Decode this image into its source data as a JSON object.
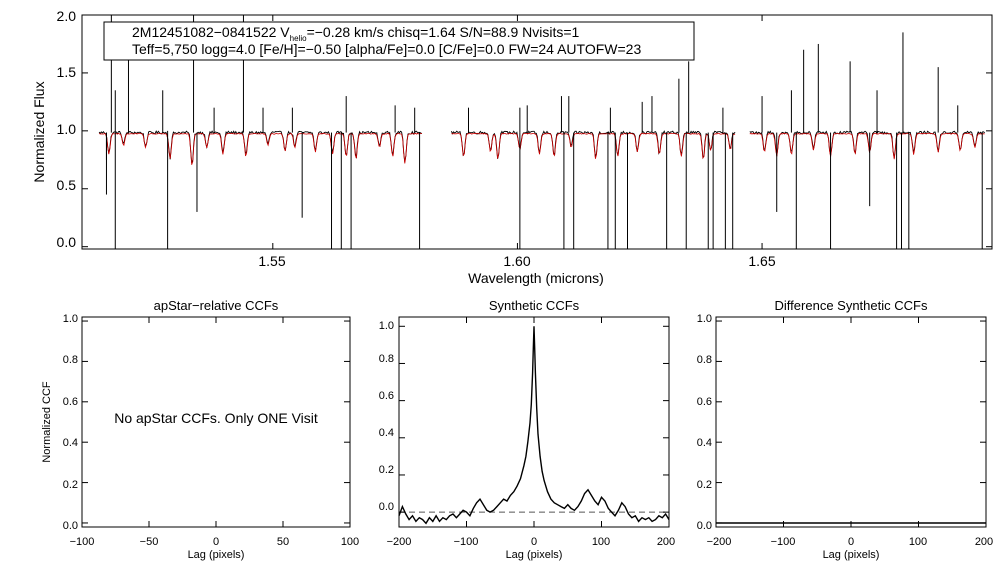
{
  "chart_data": [
    {
      "id": "spectrum",
      "type": "line",
      "info_box": {
        "line1_prefix": "2M12451082−0841522  V",
        "line1_sub": "helio",
        "line1_suffix": "=−0.28 km/s  chisq=1.64  S/N=88.9  Nvisits=1",
        "line2": "Teff=5,750 logg=4.0 [Fe/H]=−0.50 [alpha/Fe]=0.0 [C/Fe]=0.0 FW=24 AUTOFW=23"
      },
      "xlabel": "Wavelength (microns)",
      "ylabel": "Normalized Flux",
      "xlim": [
        1.511,
        1.697
      ],
      "ylim": [
        -0.02,
        2.0
      ],
      "xticks": [
        1.55,
        1.6,
        1.65
      ],
      "xtick_labels": [
        "1.55",
        "1.60",
        "1.65"
      ],
      "yticks": [
        0.0,
        0.5,
        1.0,
        1.5,
        2.0
      ],
      "ytick_labels": [
        "0.0",
        "0.5",
        "1.0",
        "1.5",
        "2.0"
      ],
      "chips": [
        [
          1.5145,
          1.5805
        ],
        [
          1.5865,
          1.6445
        ],
        [
          1.6475,
          1.6955
        ]
      ],
      "series": [
        {
          "key": "observed",
          "color": "#000000",
          "continuum": 0.985,
          "noise": 0.012
        },
        {
          "key": "model",
          "color": "#cc0000",
          "continuum": 0.975,
          "noise": 0.004
        }
      ],
      "absorption_lines": [
        [
          1.5165,
          0.18
        ],
        [
          1.5195,
          0.1
        ],
        [
          1.524,
          0.12
        ],
        [
          1.529,
          0.22
        ],
        [
          1.5335,
          0.28
        ],
        [
          1.5365,
          0.12
        ],
        [
          1.5398,
          0.18
        ],
        [
          1.5445,
          0.2
        ],
        [
          1.549,
          0.1
        ],
        [
          1.5525,
          0.15
        ],
        [
          1.5545,
          0.12
        ],
        [
          1.5587,
          0.16
        ],
        [
          1.5622,
          0.18
        ],
        [
          1.565,
          0.2
        ],
        [
          1.567,
          0.22
        ],
        [
          1.5718,
          0.12
        ],
        [
          1.5745,
          0.2
        ],
        [
          1.577,
          0.26
        ],
        [
          1.589,
          0.2
        ],
        [
          1.5945,
          0.16
        ],
        [
          1.596,
          0.22
        ],
        [
          1.6005,
          0.14
        ],
        [
          1.6045,
          0.18
        ],
        [
          1.6075,
          0.2
        ],
        [
          1.611,
          0.12
        ],
        [
          1.616,
          0.22
        ],
        [
          1.6205,
          0.2
        ],
        [
          1.6245,
          0.16
        ],
        [
          1.629,
          0.18
        ],
        [
          1.6335,
          0.2
        ],
        [
          1.638,
          0.22
        ],
        [
          1.6395,
          0.15
        ],
        [
          1.6435,
          0.14
        ],
        [
          1.6505,
          0.16
        ],
        [
          1.653,
          0.2
        ],
        [
          1.656,
          0.18
        ],
        [
          1.6605,
          0.14
        ],
        [
          1.664,
          0.2
        ],
        [
          1.669,
          0.18
        ],
        [
          1.672,
          0.16
        ],
        [
          1.677,
          0.22
        ],
        [
          1.681,
          0.18
        ],
        [
          1.686,
          0.16
        ],
        [
          1.6905,
          0.15
        ],
        [
          1.6935,
          0.12
        ]
      ],
      "emission_spikes": [
        [
          1.517,
          2.0
        ],
        [
          1.5205,
          1.7
        ],
        [
          1.5275,
          1.35
        ],
        [
          1.5338,
          2.0
        ],
        [
          1.538,
          1.2
        ],
        [
          1.544,
          2.0
        ],
        [
          1.548,
          1.2
        ],
        [
          1.554,
          1.2
        ],
        [
          1.565,
          1.3
        ],
        [
          1.575,
          1.22
        ],
        [
          1.579,
          1.2
        ],
        [
          1.59,
          1.2
        ],
        [
          1.602,
          1.22
        ],
        [
          1.609,
          1.3
        ],
        [
          1.6105,
          1.3
        ],
        [
          1.619,
          1.2
        ],
        [
          1.6255,
          1.25
        ],
        [
          1.6275,
          1.3
        ],
        [
          1.633,
          1.45
        ],
        [
          1.635,
          1.6
        ],
        [
          1.642,
          1.2
        ],
        [
          1.65,
          1.3
        ],
        [
          1.656,
          1.35
        ],
        [
          1.6585,
          1.7
        ],
        [
          1.6615,
          1.75
        ],
        [
          1.668,
          1.6
        ],
        [
          1.6735,
          1.35
        ],
        [
          1.6788,
          1.85
        ],
        [
          1.686,
          1.55
        ],
        [
          1.69,
          1.22
        ]
      ],
      "dropouts": [
        [
          1.516,
          0.45,
          0.75
        ],
        [
          1.5178,
          -0.02,
          1.35
        ],
        [
          1.5285,
          -0.02,
          1.0
        ],
        [
          1.5345,
          0.3,
          0.0
        ],
        [
          1.556,
          0.25,
          0.0
        ],
        [
          1.562,
          -0.02,
          0.0
        ],
        [
          1.564,
          -0.02,
          0.0
        ],
        [
          1.566,
          -0.02,
          0.0
        ],
        [
          1.58,
          -0.02,
          0.0
        ],
        [
          1.6005,
          -0.02,
          1.2
        ],
        [
          1.6095,
          -0.02,
          0.0
        ],
        [
          1.6115,
          -0.02,
          0.0
        ],
        [
          1.6185,
          -0.02,
          0.0
        ],
        [
          1.62,
          -0.02,
          0.0
        ],
        [
          1.6225,
          -0.02,
          0.0
        ],
        [
          1.6305,
          -0.02,
          0.0
        ],
        [
          1.6345,
          -0.02,
          0.0
        ],
        [
          1.639,
          -0.02,
          0.0
        ],
        [
          1.64,
          -0.02,
          0.0
        ],
        [
          1.6425,
          -0.02,
          0.0
        ],
        [
          1.644,
          -0.02,
          0.0
        ],
        [
          1.653,
          0.3,
          0.0
        ],
        [
          1.657,
          -0.02,
          0.0
        ],
        [
          1.664,
          -0.02,
          0.0
        ],
        [
          1.672,
          0.35,
          0.0
        ],
        [
          1.6775,
          -0.02,
          0.0
        ],
        [
          1.6785,
          -0.02,
          0.0
        ],
        [
          1.68,
          -0.02,
          0.0
        ],
        [
          1.695,
          -0.02,
          0.0
        ]
      ]
    },
    {
      "id": "apstar-ccf",
      "type": "line",
      "title": "apStar−relative CCFs",
      "xlabel": "Lag (pixels)",
      "ylabel": "Normalized CCF",
      "xlim": [
        -100,
        100
      ],
      "ylim": [
        -0.02,
        1.02
      ],
      "xticks": [
        -100,
        -50,
        0,
        50,
        100
      ],
      "xtick_labels": [
        "−100",
        "−50",
        "0",
        "50",
        "100"
      ],
      "yticks": [
        0.0,
        0.2,
        0.4,
        0.6,
        0.8,
        1.0
      ],
      "ytick_labels": [
        "0.0",
        "0.2",
        "0.4",
        "0.6",
        "0.8",
        "1.0"
      ],
      "annotation": "No apStar CCFs.  Only ONE Visit",
      "series": []
    },
    {
      "id": "synthetic-ccf",
      "type": "line",
      "title": "Synthetic CCFs",
      "xlabel": "Lag (pixels)",
      "ylabel": "",
      "xlim": [
        -200,
        200
      ],
      "ylim": [
        -0.08,
        1.05
      ],
      "xticks": [
        -200,
        -100,
        0,
        100,
        200
      ],
      "xtick_labels": [
        "−200",
        "−100",
        "0",
        "100",
        "200"
      ],
      "yticks": [
        0.0,
        0.2,
        0.4,
        0.6,
        0.8,
        1.0
      ],
      "ytick_labels": [
        "0.0",
        "0.2",
        "0.4",
        "0.6",
        "0.8",
        "1.0"
      ],
      "zero_line": 0.0,
      "series": [
        {
          "color": "#000000",
          "x": [
            -200,
            -195,
            -190,
            -185,
            -180,
            -175,
            -170,
            -165,
            -160,
            -155,
            -150,
            -145,
            -140,
            -135,
            -130,
            -125,
            -120,
            -115,
            -110,
            -105,
            -100,
            -95,
            -90,
            -85,
            -80,
            -75,
            -70,
            -65,
            -60,
            -55,
            -50,
            -45,
            -40,
            -35,
            -30,
            -25,
            -20,
            -15,
            -12,
            -9,
            -6,
            -4,
            -2,
            -1,
            0,
            1,
            2,
            4,
            6,
            9,
            12,
            15,
            20,
            25,
            30,
            35,
            40,
            45,
            50,
            55,
            60,
            65,
            70,
            75,
            80,
            85,
            90,
            95,
            100,
            105,
            110,
            115,
            120,
            125,
            130,
            135,
            140,
            145,
            150,
            155,
            160,
            165,
            170,
            175,
            180,
            185,
            190,
            195,
            200
          ],
          "values": [
            -0.02,
            0.03,
            -0.01,
            -0.04,
            -0.02,
            -0.05,
            -0.03,
            -0.04,
            -0.06,
            -0.03,
            -0.05,
            -0.02,
            -0.05,
            -0.03,
            -0.04,
            -0.02,
            -0.01,
            -0.03,
            -0.01,
            0.01,
            0.0,
            -0.02,
            0.02,
            0.05,
            0.07,
            0.04,
            0.01,
            0.0,
            0.01,
            0.03,
            0.05,
            0.07,
            0.06,
            0.09,
            0.11,
            0.14,
            0.18,
            0.25,
            0.3,
            0.38,
            0.48,
            0.58,
            0.75,
            0.88,
            1.0,
            0.88,
            0.75,
            0.56,
            0.42,
            0.3,
            0.22,
            0.17,
            0.11,
            0.07,
            0.05,
            0.04,
            0.03,
            0.02,
            0.04,
            0.02,
            0.01,
            0.03,
            0.06,
            0.1,
            0.12,
            0.09,
            0.06,
            0.04,
            0.08,
            0.06,
            0.02,
            0.0,
            -0.02,
            0.01,
            0.05,
            0.03,
            -0.01,
            -0.03,
            -0.02,
            -0.05,
            -0.03,
            -0.04,
            -0.03,
            -0.05,
            -0.04,
            -0.02,
            -0.03,
            -0.01,
            -0.04
          ]
        }
      ]
    },
    {
      "id": "difference-ccf",
      "type": "line",
      "title": "Difference Synthetic CCFs",
      "xlabel": "Lag (pixels)",
      "ylabel": "",
      "xlim": [
        -200,
        200
      ],
      "ylim": [
        -0.02,
        1.02
      ],
      "xticks": [
        -200,
        -100,
        0,
        100,
        200
      ],
      "xtick_labels": [
        "−200",
        "−100",
        "0",
        "100",
        "200"
      ],
      "yticks": [
        0.0,
        0.2,
        0.4,
        0.6,
        0.8,
        1.0
      ],
      "ytick_labels": [
        "0.0",
        "0.2",
        "0.4",
        "0.6",
        "0.8",
        "1.0"
      ],
      "series": [
        {
          "color": "#000000",
          "x": [
            -200,
            200
          ],
          "values": [
            0.0,
            0.0
          ]
        }
      ]
    }
  ]
}
